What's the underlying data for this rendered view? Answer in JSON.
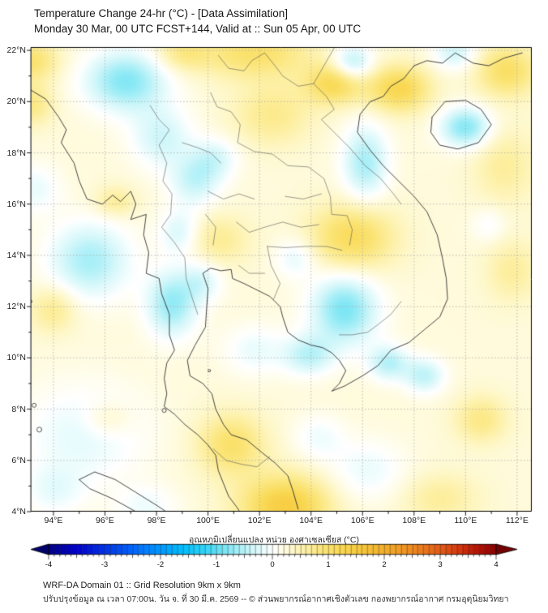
{
  "header": {
    "title": "Temperature Change 24-hr (°C) - [Data Assimilation]",
    "subtitle": "Monday 30 Mar, 00 UTC FCST+144, Valid at :: Sun 05 Apr, 00 UTC"
  },
  "map": {
    "axes": {
      "lon_min": 93.12,
      "lon_max": 112.57,
      "lat_min": 4.0,
      "lat_max": 22.13,
      "lon_ticks": [
        94,
        96,
        98,
        100,
        102,
        104,
        106,
        108,
        110,
        112
      ],
      "lon_tick_labels": [
        "94°E",
        "96°E",
        "98°E",
        "100°E",
        "102°E",
        "104°E",
        "106°E",
        "108°E",
        "110°E",
        "112°E"
      ],
      "lat_ticks": [
        22,
        20,
        18,
        16,
        14,
        12,
        10,
        8,
        6,
        4
      ],
      "lat_tick_labels": [
        "22°N",
        "20°N",
        "18°N",
        "16°N",
        "14°N",
        "12°N",
        "10°N",
        "8°N",
        "6°N",
        "4°N"
      ],
      "grid_step_deg": 2
    },
    "field": {
      "units": "degC",
      "base": 0.25,
      "blobs": [
        [
          93.2,
          21.6,
          1.0,
          0.8,
          0.7
        ],
        [
          101.8,
          21.9,
          2.2,
          1.0,
          0.75
        ],
        [
          99.0,
          21.9,
          1.0,
          0.7,
          0.5
        ],
        [
          104.9,
          20.7,
          1.1,
          0.8,
          0.95
        ],
        [
          107.4,
          20.5,
          1.2,
          0.9,
          1.0
        ],
        [
          111.6,
          21.2,
          1.2,
          1.0,
          0.8
        ],
        [
          93.2,
          19.9,
          0.8,
          0.8,
          0.55
        ],
        [
          102.5,
          19.5,
          1.5,
          1.2,
          0.5
        ],
        [
          96.4,
          16.1,
          0.8,
          0.6,
          0.45
        ],
        [
          94.0,
          11.9,
          0.9,
          0.9,
          0.5
        ],
        [
          100.4,
          14.6,
          1.2,
          1.0,
          0.45
        ],
        [
          105.6,
          14.7,
          1.6,
          1.3,
          0.9
        ],
        [
          111.5,
          17.5,
          1.2,
          1.5,
          0.4
        ],
        [
          111.8,
          13.4,
          1.0,
          1.2,
          0.4
        ],
        [
          103.0,
          4.2,
          1.7,
          1.2,
          1.2
        ],
        [
          100.9,
          6.6,
          1.3,
          1.2,
          0.75
        ],
        [
          96.1,
          7.6,
          0.9,
          0.7,
          0.35
        ],
        [
          110.6,
          7.6,
          1.0,
          0.9,
          0.55
        ],
        [
          109.0,
          4.5,
          1.5,
          1.0,
          0.4
        ],
        [
          96.8,
          20.8,
          1.6,
          1.2,
          -1.05
        ],
        [
          98.2,
          18.6,
          1.2,
          1.2,
          -0.6
        ],
        [
          99.5,
          16.9,
          1.0,
          1.0,
          -0.65
        ],
        [
          100.3,
          17.8,
          0.9,
          0.8,
          -0.5
        ],
        [
          95.4,
          13.8,
          1.6,
          1.5,
          -0.85
        ],
        [
          98.6,
          12.1,
          1.0,
          1.3,
          -0.95
        ],
        [
          98.9,
          14.9,
          0.8,
          0.9,
          -0.55
        ],
        [
          99.8,
          13.0,
          0.8,
          0.8,
          -0.5
        ],
        [
          105.6,
          21.5,
          0.8,
          0.7,
          -0.85
        ],
        [
          110.0,
          19.0,
          1.0,
          0.8,
          -1.05
        ],
        [
          109.6,
          21.9,
          0.9,
          0.7,
          -0.6
        ],
        [
          106.1,
          17.6,
          0.9,
          1.5,
          -0.85
        ],
        [
          105.3,
          11.9,
          1.3,
          1.4,
          -1.1
        ],
        [
          103.9,
          10.1,
          1.0,
          0.8,
          -0.7
        ],
        [
          107.0,
          9.8,
          0.8,
          0.7,
          -0.75
        ],
        [
          108.4,
          9.3,
          0.8,
          0.7,
          -0.7
        ],
        [
          93.3,
          16.6,
          1.0,
          1.0,
          -0.4
        ],
        [
          95.2,
          7.0,
          2.5,
          2.0,
          -0.45
        ],
        [
          103.4,
          13.9,
          0.8,
          0.8,
          -0.45
        ],
        [
          106.2,
          5.6,
          1.5,
          1.2,
          -0.4
        ],
        [
          97.6,
          4.2,
          1.2,
          0.8,
          -0.35
        ],
        [
          94.0,
          4.8,
          1.2,
          1.0,
          -0.35
        ],
        [
          101.8,
          10.3,
          1.2,
          1.0,
          -0.4
        ],
        [
          104.3,
          6.9,
          1.0,
          0.9,
          -0.35
        ],
        [
          110.9,
          15.2,
          0.7,
          0.7,
          -0.3
        ]
      ]
    },
    "coastlines": [
      [
        [
          93.12,
          20.45
        ],
        [
          93.7,
          20.1
        ],
        [
          94.2,
          19.4
        ],
        [
          94.5,
          18.9
        ],
        [
          94.3,
          18.4
        ],
        [
          94.8,
          17.6
        ],
        [
          95.0,
          16.9
        ],
        [
          95.3,
          16.2
        ],
        [
          95.9,
          16.0
        ],
        [
          96.3,
          16.35
        ],
        [
          96.6,
          16.1
        ],
        [
          97.0,
          16.5
        ],
        [
          97.2,
          16.0
        ],
        [
          97.0,
          15.4
        ],
        [
          97.6,
          15.6
        ],
        [
          97.5,
          14.8
        ],
        [
          97.7,
          14.1
        ],
        [
          97.6,
          13.3
        ],
        [
          98.1,
          13.1
        ],
        [
          98.2,
          12.5
        ],
        [
          98.5,
          11.7
        ],
        [
          98.5,
          10.9
        ],
        [
          98.7,
          10.3
        ],
        [
          98.4,
          9.8
        ],
        [
          98.3,
          9.2
        ],
        [
          98.4,
          8.6
        ],
        [
          98.3,
          8.1
        ],
        [
          98.7,
          7.8
        ],
        [
          99.1,
          7.4
        ],
        [
          99.6,
          7.0
        ],
        [
          100.0,
          6.6
        ],
        [
          100.3,
          6.2
        ],
        [
          100.4,
          5.6
        ],
        [
          100.6,
          5.1
        ],
        [
          100.8,
          4.6
        ],
        [
          101.1,
          4.2
        ],
        [
          101.3,
          3.9
        ]
      ],
      [
        [
          103.5,
          4.1
        ],
        [
          103.3,
          4.8
        ],
        [
          103.1,
          5.4
        ],
        [
          102.6,
          5.9
        ],
        [
          102.1,
          6.3
        ],
        [
          101.5,
          6.8
        ],
        [
          100.9,
          7.0
        ],
        [
          100.6,
          7.4
        ],
        [
          100.3,
          8.0
        ],
        [
          100.15,
          8.6
        ],
        [
          99.8,
          9.0
        ],
        [
          99.3,
          9.3
        ],
        [
          99.2,
          9.9
        ],
        [
          99.5,
          10.5
        ],
        [
          99.9,
          11.2
        ],
        [
          99.95,
          12.0
        ],
        [
          100.0,
          12.7
        ],
        [
          99.8,
          13.3
        ],
        [
          100.1,
          13.5
        ],
        [
          100.5,
          13.4
        ],
        [
          100.9,
          13.45
        ],
        [
          100.95,
          13.1
        ],
        [
          101.4,
          12.9
        ],
        [
          101.9,
          12.65
        ],
        [
          102.4,
          12.4
        ],
        [
          102.8,
          12.0
        ],
        [
          102.9,
          11.6
        ],
        [
          103.1,
          11.0
        ],
        [
          103.5,
          10.7
        ],
        [
          104.0,
          10.5
        ],
        [
          104.45,
          10.4
        ],
        [
          104.8,
          10.2
        ],
        [
          105.1,
          9.9
        ],
        [
          105.35,
          9.5
        ],
        [
          105.1,
          9.0
        ],
        [
          104.8,
          8.7
        ],
        [
          105.3,
          8.9
        ],
        [
          106.0,
          9.3
        ],
        [
          106.6,
          9.7
        ],
        [
          107.1,
          10.3
        ],
        [
          107.8,
          10.6
        ],
        [
          108.4,
          11.1
        ],
        [
          109.0,
          11.6
        ],
        [
          109.3,
          12.3
        ],
        [
          109.25,
          13.1
        ],
        [
          109.1,
          13.9
        ],
        [
          108.9,
          14.8
        ],
        [
          108.5,
          15.7
        ],
        [
          108.0,
          16.3
        ],
        [
          107.4,
          16.9
        ],
        [
          106.8,
          17.5
        ],
        [
          106.3,
          18.1
        ],
        [
          105.8,
          18.8
        ],
        [
          105.9,
          19.5
        ],
        [
          106.3,
          20.0
        ],
        [
          106.8,
          20.2
        ],
        [
          107.1,
          20.6
        ],
        [
          107.6,
          20.9
        ],
        [
          108.0,
          21.4
        ]
      ],
      [
        [
          108.0,
          21.4
        ],
        [
          108.5,
          21.6
        ],
        [
          109.1,
          21.5
        ],
        [
          109.6,
          21.9
        ],
        [
          110.3,
          21.5
        ],
        [
          110.9,
          21.4
        ],
        [
          111.5,
          21.7
        ],
        [
          112.2,
          21.9
        ]
      ],
      [
        [
          108.7,
          19.4
        ],
        [
          109.2,
          20.0
        ],
        [
          110.0,
          20.05
        ],
        [
          110.6,
          19.7
        ],
        [
          111.0,
          19.1
        ],
        [
          110.5,
          18.4
        ],
        [
          109.7,
          18.15
        ],
        [
          109.0,
          18.3
        ],
        [
          108.65,
          18.8
        ],
        [
          108.7,
          19.4
        ]
      ],
      [
        [
          95.0,
          5.25
        ],
        [
          95.6,
          5.55
        ],
        [
          96.4,
          5.25
        ],
        [
          97.2,
          4.75
        ],
        [
          98.0,
          4.25
        ],
        [
          98.6,
          3.85
        ],
        [
          98.0,
          3.7
        ],
        [
          97.2,
          4.0
        ],
        [
          96.3,
          4.5
        ],
        [
          95.4,
          4.9
        ],
        [
          95.0,
          5.25
        ]
      ]
    ],
    "borders": [
      [
        [
          97.75,
          19.85
        ],
        [
          98.1,
          19.3
        ],
        [
          98.5,
          18.9
        ],
        [
          98.1,
          18.3
        ],
        [
          98.4,
          17.6
        ],
        [
          98.25,
          16.9
        ],
        [
          98.6,
          16.4
        ],
        [
          98.55,
          15.6
        ],
        [
          98.2,
          15.1
        ],
        [
          98.7,
          14.5
        ],
        [
          99.1,
          13.9
        ],
        [
          99.15,
          13.1
        ],
        [
          99.4,
          12.3
        ],
        [
          99.6,
          11.7
        ]
      ],
      [
        [
          100.1,
          20.35
        ],
        [
          100.35,
          19.8
        ],
        [
          100.9,
          19.6
        ],
        [
          101.25,
          19.1
        ],
        [
          101.15,
          18.4
        ],
        [
          101.8,
          18.05
        ],
        [
          102.5,
          17.95
        ],
        [
          103.1,
          17.5
        ],
        [
          103.9,
          17.45
        ],
        [
          104.5,
          17.0
        ],
        [
          104.75,
          16.3
        ],
        [
          104.8,
          15.6
        ],
        [
          105.4,
          15.55
        ],
        [
          105.6,
          15.0
        ],
        [
          105.5,
          14.4
        ]
      ],
      [
        [
          102.3,
          14.35
        ],
        [
          103.0,
          14.3
        ],
        [
          103.8,
          14.35
        ],
        [
          104.6,
          14.35
        ],
        [
          105.2,
          14.2
        ]
      ],
      [
        [
          102.3,
          14.35
        ],
        [
          102.45,
          13.6
        ],
        [
          102.8,
          12.9
        ],
        [
          102.55,
          12.3
        ]
      ],
      [
        [
          104.9,
          22.1
        ],
        [
          104.5,
          21.4
        ],
        [
          104.1,
          20.7
        ],
        [
          104.6,
          20.2
        ],
        [
          104.9,
          19.7
        ],
        [
          104.4,
          19.3
        ],
        [
          105.0,
          18.7
        ],
        [
          105.5,
          18.2
        ],
        [
          106.1,
          17.5
        ],
        [
          106.7,
          17.0
        ],
        [
          107.2,
          16.4
        ],
        [
          107.5,
          16.0
        ]
      ],
      [
        [
          100.4,
          21.8
        ],
        [
          100.8,
          21.3
        ],
        [
          101.4,
          21.2
        ],
        [
          101.7,
          21.6
        ],
        [
          102.2,
          21.9
        ],
        [
          102.6,
          21.4
        ],
        [
          102.9,
          21.0
        ],
        [
          103.5,
          20.6
        ],
        [
          104.1,
          20.7
        ]
      ],
      [
        [
          100.2,
          6.45
        ],
        [
          100.7,
          6.0
        ],
        [
          101.3,
          5.85
        ],
        [
          101.9,
          5.75
        ],
        [
          102.4,
          6.15
        ]
      ],
      [
        [
          105.1,
          10.9
        ],
        [
          105.6,
          10.9
        ],
        [
          106.2,
          11.0
        ],
        [
          106.6,
          11.3
        ],
        [
          107.1,
          11.7
        ],
        [
          107.5,
          12.2
        ]
      ],
      [
        [
          99.0,
          18.4
        ],
        [
          99.6,
          18.2
        ],
        [
          100.1,
          18.0
        ],
        [
          100.5,
          17.6
        ]
      ],
      [
        [
          100.0,
          16.5
        ],
        [
          100.6,
          16.2
        ],
        [
          101.2,
          16.4
        ],
        [
          101.8,
          16.2
        ]
      ],
      [
        [
          101.1,
          15.3
        ],
        [
          101.6,
          14.9
        ],
        [
          102.2,
          15.1
        ],
        [
          102.9,
          15.3
        ],
        [
          103.6,
          15.1
        ],
        [
          104.3,
          15.2
        ]
      ],
      [
        [
          99.9,
          15.6
        ],
        [
          100.3,
          15.1
        ],
        [
          100.2,
          14.4
        ]
      ],
      [
        [
          101.2,
          13.6
        ],
        [
          101.6,
          13.3
        ],
        [
          102.2,
          13.3
        ]
      ],
      [
        [
          103.0,
          16.3
        ],
        [
          103.7,
          16.2
        ],
        [
          104.4,
          16.4
        ]
      ]
    ],
    "islands": [
      [
        93.25,
        8.15,
        2.5
      ],
      [
        93.45,
        7.2,
        3.0
      ],
      [
        98.3,
        7.95,
        2.5
      ],
      [
        93.1,
        12.2,
        2.0
      ],
      [
        100.05,
        9.5,
        1.5
      ]
    ]
  },
  "colorbar": {
    "label": "อุณหภูมิเปลี่ยนแปลง หน่วย องศาเซลเซียส (°C)",
    "min": -4,
    "max": 4,
    "major_ticks": [
      -4,
      -3,
      -2,
      -1,
      0,
      1,
      2,
      3,
      4
    ],
    "major_tick_labels": [
      "-4",
      "-3",
      "-2",
      "-1",
      "0",
      "1",
      "2",
      "3",
      "4"
    ],
    "minor_step": 0.1,
    "segment_step": 0.1,
    "left_arrow_color": "#00006B",
    "right_arrow_color": "#730000",
    "stops": [
      [
        -4.0,
        "#00008B"
      ],
      [
        -3.5,
        "#0000CD"
      ],
      [
        -3.0,
        "#0033E6"
      ],
      [
        -2.5,
        "#0066FF"
      ],
      [
        -2.0,
        "#0099FF"
      ],
      [
        -1.6,
        "#00BFFF"
      ],
      [
        -1.2,
        "#33D4F5"
      ],
      [
        -0.9,
        "#73E4F3"
      ],
      [
        -0.6,
        "#A8EFF7"
      ],
      [
        -0.35,
        "#D2F7FA"
      ],
      [
        -0.15,
        "#EBFCFD"
      ],
      [
        0.0,
        "#FFFFFF"
      ],
      [
        0.15,
        "#FFFDEB"
      ],
      [
        0.35,
        "#FEF8CC"
      ],
      [
        0.6,
        "#FDF0A4"
      ],
      [
        0.9,
        "#FBE578"
      ],
      [
        1.2,
        "#F9D955"
      ],
      [
        1.6,
        "#F7C73B"
      ],
      [
        2.0,
        "#F3AE2B"
      ],
      [
        2.5,
        "#EE8A20"
      ],
      [
        3.0,
        "#E35B16"
      ],
      [
        3.4,
        "#D0300C"
      ],
      [
        3.7,
        "#B01105"
      ],
      [
        4.0,
        "#8B0000"
      ]
    ]
  },
  "footer": {
    "line1": "WRF-DA Domain 01 :: Grid Resolution 9km x 9km",
    "line2": "ปรับปรุงข้อมูล ณ เวลา 07:00น. วัน จ. ที่ 30 มี.ค. 2569 -- © ส่วนพยากรณ์อากาศเชิงตัวเลข กองพยากรณ์อากาศ กรมอุตุนิยมวิทยา"
  },
  "style_colors": {
    "map_frame": "#000000",
    "coastline": "#2f2f2f",
    "border_line": "#4a4a4a",
    "gridline": "#a8a8a8",
    "background": "#ffffff"
  }
}
